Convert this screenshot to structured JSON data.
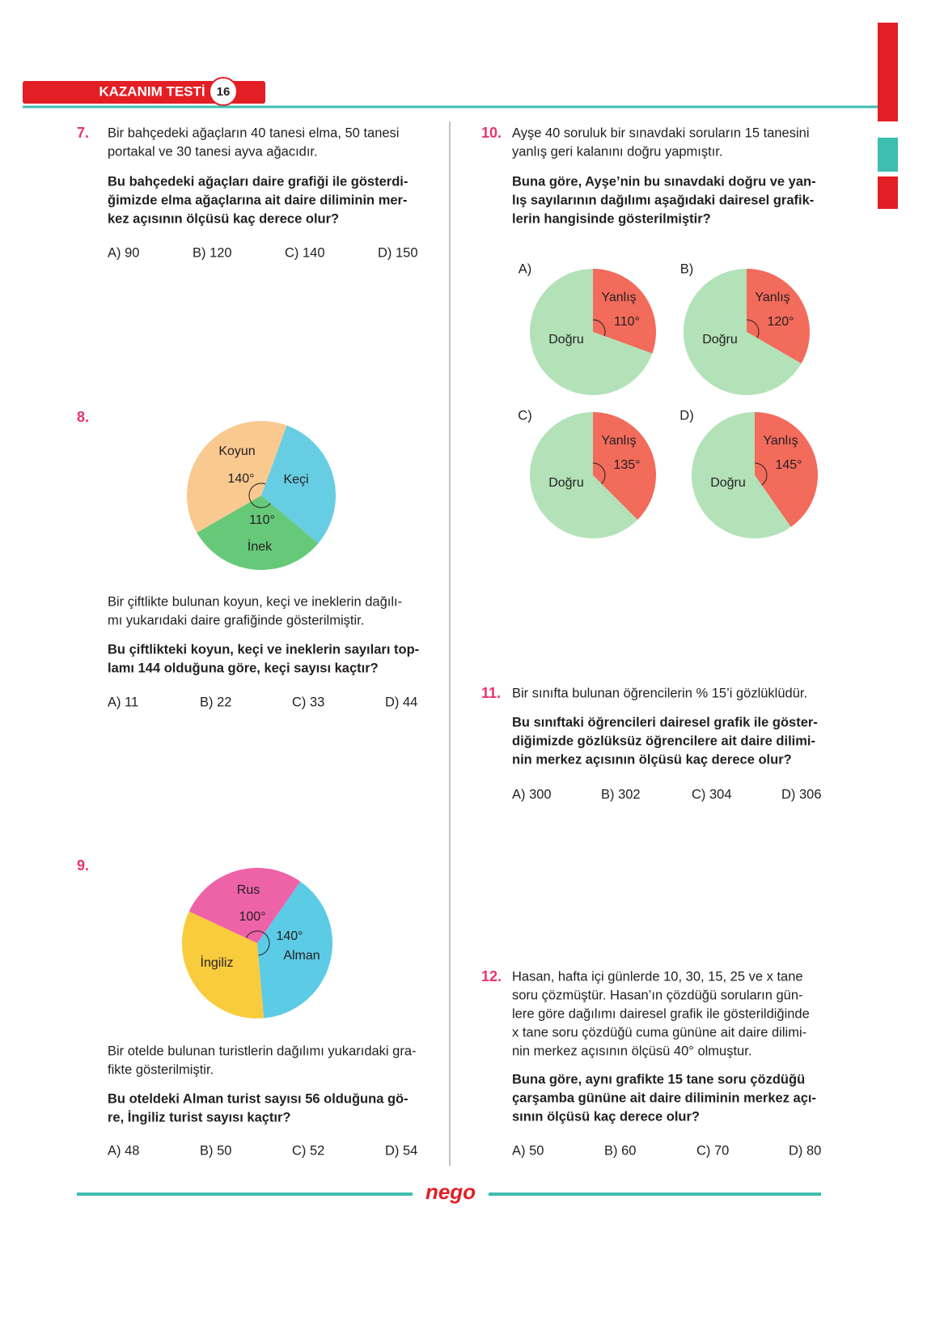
{
  "header": {
    "title": "KAZANIM TESTİ",
    "number": "16"
  },
  "questions": [
    {
      "number": "7.",
      "text": [
        "Bir bahçedeki ağaçların 40 tanesi elma, 50 tanesi",
        "portakal ve 30 tanesi ayva ağacıdır."
      ],
      "question": [
        "Bu bahçedeki ağaçları daire grafiği ile gösterdi-",
        "ğimizde elma ağaçlarına ait daire diliminin mer-",
        "kez açısının ölçüsü kaç derece olur?"
      ],
      "options": [
        "A) 90",
        "B) 120",
        "C) 140",
        "D) 150"
      ]
    },
    {
      "number": "8.",
      "pie": {
        "slices": [
          {
            "name": "Keçi",
            "value": 110,
            "color": "#67cde3"
          },
          {
            "name": "İnek",
            "value": 110,
            "label": "110°",
            "color": "#66c97a"
          },
          {
            "name": "Koyun",
            "value": 140,
            "label": "140°",
            "color": "#f9c98f"
          }
        ]
      },
      "text": [
        "Bir çiftlikte bulunan koyun, keçi ve ineklerin dağılı-",
        "mı yukarıdaki daire grafiğinde gösterilmiştir."
      ],
      "question": [
        "Bu çiftlikteki koyun, keçi ve ineklerin sayıları top-",
        "lamı 144 olduğuna göre, keçi sayısı kaçtır?"
      ],
      "options": [
        "A) 11",
        "B) 22",
        "C) 33",
        "D) 44"
      ]
    },
    {
      "number": "9.",
      "pie": {
        "slices": [
          {
            "name": "Alman",
            "value": 140,
            "label": "140°",
            "color": "#5bcbe6"
          },
          {
            "name": "İngiliz",
            "value": 120,
            "color": "#f9cc3d"
          },
          {
            "name": "Rus",
            "value": 100,
            "label": "100°",
            "color": "#ee62a8"
          }
        ]
      },
      "text": [
        "Bir otelde bulunan turistlerin dağılımı yukarıdaki gra-",
        "fikte gösterilmiştir."
      ],
      "question": [
        "Bu oteldeki Alman turist sayısı 56 olduğuna gö-",
        "re, İngiliz turist sayısı kaçtır?"
      ],
      "options": [
        "A) 48",
        "B) 50",
        "C) 52",
        "D) 54"
      ]
    },
    {
      "number": "10.",
      "text": [
        "Ayşe 40 soruluk bir sınavdaki soruların 15 tanesini",
        "yanlış geri kalanını doğru yapmıştır."
      ],
      "question": [
        "Buna göre, Ayşe’nin bu sınavdaki doğru ve yan-",
        "lış sayılarının dağılımı aşağıdaki dairesel grafik-",
        "lerin hangisinde gösterilmiştir?"
      ],
      "option_charts": [
        {
          "label": "A)",
          "slices": [
            {
              "name": "Yanlış",
              "value": 110,
              "label": "110°",
              "color": "#f26b5b"
            },
            {
              "name": "Doğru",
              "value": 250,
              "color": "#b3e2b8"
            }
          ]
        },
        {
          "label": "B)",
          "slices": [
            {
              "name": "Yanlış",
              "value": 120,
              "label": "120°",
              "color": "#f26b5b"
            },
            {
              "name": "Doğru",
              "value": 240,
              "color": "#b3e2b8"
            }
          ]
        },
        {
          "label": "C)",
          "slices": [
            {
              "name": "Yanlış",
              "value": 135,
              "label": "135°",
              "color": "#f26b5b"
            },
            {
              "name": "Doğru",
              "value": 225,
              "color": "#b3e2b8"
            }
          ]
        },
        {
          "label": "D)",
          "slices": [
            {
              "name": "Yanlış",
              "value": 145,
              "label": "145°",
              "color": "#f26b5b"
            },
            {
              "name": "Doğru",
              "value": 215,
              "color": "#b3e2b8"
            }
          ]
        }
      ]
    },
    {
      "number": "11.",
      "text": [
        "Bir sınıfta bulunan öğrencilerin % 15’i gözlüklüdür."
      ],
      "question": [
        "Bu sınıftaki öğrencileri dairesel grafik ile göster-",
        "diğimizde gözlüksüz öğrencilere ait daire dilimi-",
        "nin merkez açısının ölçüsü kaç derece olur?"
      ],
      "options": [
        "A) 300",
        "B) 302",
        "C) 304",
        "D) 306"
      ]
    },
    {
      "number": "12.",
      "text": [
        "Hasan, hafta içi günlerde 10, 30, 15, 25 ve x tane",
        "soru çözmüştür. Hasan’ın çözdüğü soruların gün-",
        "lere göre dağılımı dairesel grafik ile gösterildiğinde",
        "x tane soru çözdüğü cuma gününe ait daire dilimi-",
        "nin merkez açısının ölçüsü 40° olmuştur."
      ],
      "question": [
        "Buna göre, aynı grafikte 15 tane soru çözdüğü",
        "çarşamba gününe ait daire diliminin merkez açı-",
        "sının ölçüsü kaç derece olur?"
      ],
      "options": [
        "A) 50",
        "B) 60",
        "C) 70",
        "D) 80"
      ]
    }
  ],
  "footer": {
    "logo": "nego"
  }
}
